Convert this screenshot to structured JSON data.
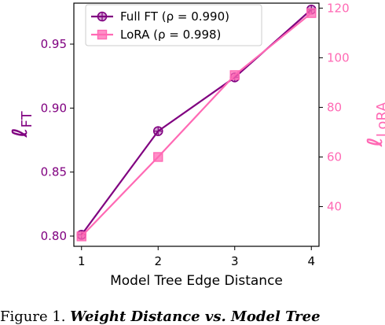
{
  "chart_data": {
    "type": "line",
    "xlabel": "Model Tree Edge Distance",
    "x": [
      1,
      2,
      3,
      4
    ],
    "xticks": [
      "1",
      "2",
      "3",
      "4"
    ],
    "xlim": [
      0.9,
      4.1
    ],
    "left_axis": {
      "label_main": "ℓ",
      "label_sub": "FT",
      "ylim": [
        0.792,
        0.982
      ],
      "ticks": [
        0.8,
        0.85,
        0.9,
        0.95
      ],
      "tick_labels": [
        "0.80",
        "0.85",
        "0.90",
        "0.95"
      ],
      "color": "#800080"
    },
    "right_axis": {
      "label_main": "ℓ",
      "label_sub": "LoRA",
      "ylim": [
        24,
        122
      ],
      "ticks": [
        40,
        60,
        80,
        100,
        120
      ],
      "tick_labels": [
        "40",
        "60",
        "80",
        "100",
        "120"
      ],
      "color": "#ff69b4"
    },
    "series": [
      {
        "name": "Full FT (ρ = 0.990)",
        "axis": "left",
        "marker": "circle-plus",
        "color": "#800080",
        "values": [
          0.801,
          0.882,
          0.924,
          0.977
        ]
      },
      {
        "name": "LoRA (ρ = 0.998)",
        "axis": "right",
        "marker": "square",
        "color": "#ff69b4",
        "values": [
          28,
          60,
          93,
          118
        ]
      }
    ],
    "legend_position": "top-left"
  },
  "caption": {
    "prefix": "Figure 1.",
    "title": "Weight Distance vs. Model Tree"
  }
}
